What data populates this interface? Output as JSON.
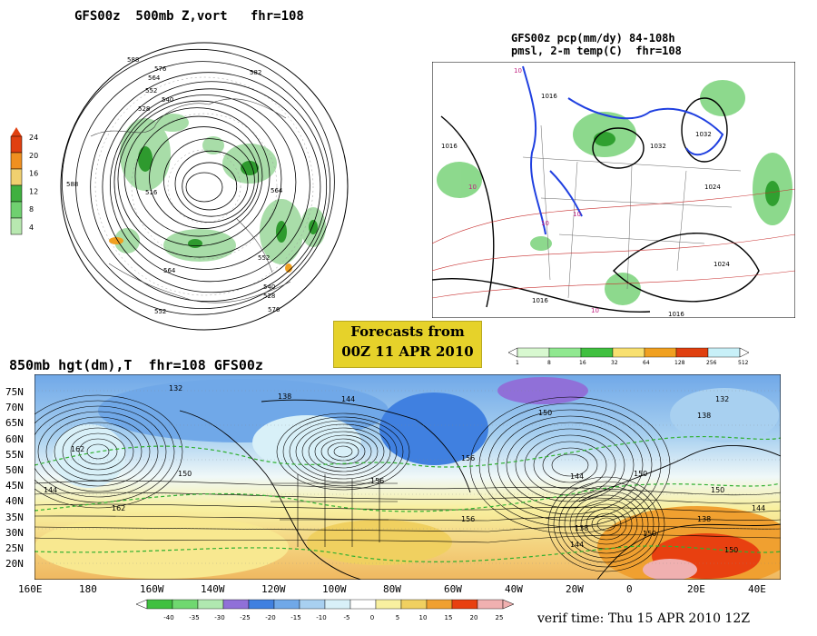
{
  "panel_500mb": {
    "title": "GFS00z  500mb Z,vort   fhr=108",
    "colorbar": {
      "labels": [
        "24",
        "20",
        "16",
        "12",
        "8",
        "4"
      ],
      "colors": [
        "#e04010",
        "#f09020",
        "#f0d070",
        "#40b040",
        "#70d070",
        "#b8e8b0"
      ]
    },
    "contour_labels": [
      "588",
      "576",
      "564",
      "552",
      "540",
      "528",
      "516",
      "582",
      "564",
      "552",
      "540",
      "528",
      "552",
      "564",
      "576",
      "588"
    ]
  },
  "panel_pcp": {
    "title_line1": "GFS00z pcp(mm/dy) 84-108h",
    "title_line2": "pmsl, 2-m temp(C)  fhr=108",
    "colorbar": {
      "labels": [
        "1",
        "8",
        "16",
        "32",
        "64",
        "128",
        "256",
        "512"
      ],
      "colors": [
        "#d8f8d0",
        "#90e890",
        "#40c040",
        "#f8e070",
        "#f0a020",
        "#e04010",
        "#c8f0f8"
      ]
    },
    "contour_labels": [
      "1016",
      "1016",
      "1032",
      "1032",
      "1024",
      "1024",
      "1016",
      "1016",
      "10",
      "10",
      "10",
      "10",
      "10"
    ]
  },
  "forecast_badge": {
    "line1": "Forecasts from",
    "line2": "00Z 11 APR 2010"
  },
  "panel_850mb": {
    "title": "850mb hgt(dm),T  fhr=108 GFS00z",
    "lat_labels": [
      "75N",
      "70N",
      "65N",
      "60N",
      "55N",
      "50N",
      "45N",
      "40N",
      "35N",
      "30N",
      "25N",
      "20N"
    ],
    "lon_labels": [
      "160E",
      "180",
      "160W",
      "140W",
      "120W",
      "100W",
      "80W",
      "60W",
      "40W",
      "20W",
      "0",
      "20E",
      "40E"
    ],
    "contour_labels": [
      "132",
      "138",
      "144",
      "150",
      "156",
      "162",
      "144",
      "150",
      "156",
      "138",
      "144",
      "150",
      "132",
      "138",
      "150",
      "156",
      "144",
      "150",
      "162",
      "138",
      "144",
      "150"
    ],
    "colorbar": {
      "labels": [
        "-40",
        "-35",
        "-30",
        "-25",
        "-20",
        "-15",
        "-10",
        "-5",
        "0",
        "5",
        "10",
        "15",
        "20",
        "25"
      ],
      "colors": [
        "#40c040",
        "#70d870",
        "#b0e8b0",
        "#9070d8",
        "#4080e0",
        "#70a8e8",
        "#a8d0f0",
        "#d8f0f8",
        "#ffffff",
        "#f8f0a0",
        "#f0d060",
        "#f0a030",
        "#e84010",
        "#f0b0b0"
      ]
    }
  },
  "verif_time": "verif time: Thu 15 APR 2010 12Z"
}
